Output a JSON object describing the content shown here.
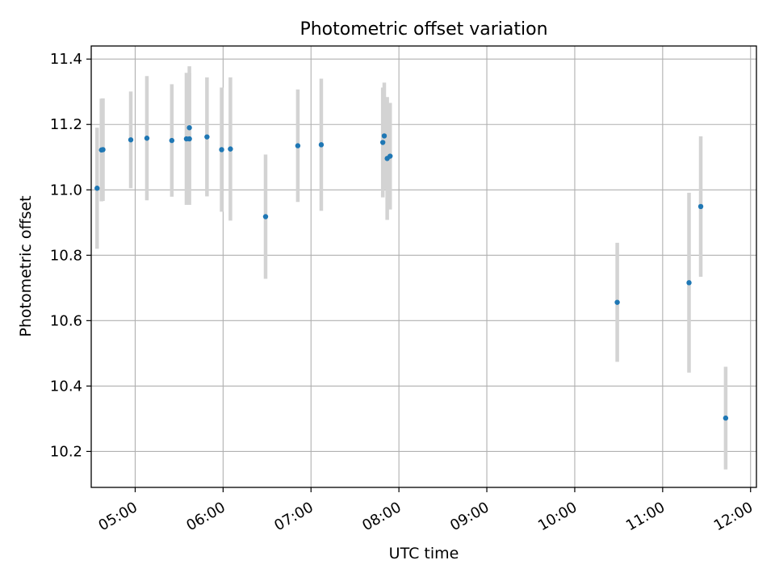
{
  "chart_data": {
    "type": "scatter",
    "title": "Photometric offset variation",
    "xlabel": "UTC time",
    "ylabel": "Photometric offset",
    "x_axis": {
      "scale": "time",
      "range": [
        "04:30",
        "12:04"
      ],
      "ticks": [
        "05:00",
        "06:00",
        "07:00",
        "08:00",
        "09:00",
        "10:00",
        "11:00",
        "12:00"
      ]
    },
    "y_axis": {
      "range": [
        10.09,
        11.44
      ],
      "ticks": [
        "10.2",
        "10.4",
        "10.6",
        "10.8",
        "11.0",
        "11.2",
        "11.4"
      ]
    },
    "grid": true,
    "legend": "none",
    "colors": {
      "marker": "#1f77b4",
      "errorbar": "#d3d3d3",
      "grid": "#b0b0b0"
    },
    "points": [
      {
        "x": "04:34",
        "y": 11.005,
        "err": 0.185
      },
      {
        "x": "04:37",
        "y": 11.122,
        "err": 0.157
      },
      {
        "x": "04:38",
        "y": 11.123,
        "err": 0.157
      },
      {
        "x": "04:57",
        "y": 11.153,
        "err": 0.148
      },
      {
        "x": "05:08",
        "y": 11.158,
        "err": 0.19
      },
      {
        "x": "05:25",
        "y": 11.151,
        "err": 0.172
      },
      {
        "x": "05:35",
        "y": 11.156,
        "err": 0.202
      },
      {
        "x": "05:37",
        "y": 11.156,
        "err": 0.202
      },
      {
        "x": "05:37",
        "y": 11.19,
        "err": 0.188
      },
      {
        "x": "05:49",
        "y": 11.162,
        "err": 0.182
      },
      {
        "x": "05:59",
        "y": 11.123,
        "err": 0.19
      },
      {
        "x": "06:05",
        "y": 11.125,
        "err": 0.219
      },
      {
        "x": "06:29",
        "y": 10.918,
        "err": 0.19
      },
      {
        "x": "06:51",
        "y": 11.135,
        "err": 0.172
      },
      {
        "x": "07:07",
        "y": 11.138,
        "err": 0.202
      },
      {
        "x": "07:49",
        "y": 11.145,
        "err": 0.168
      },
      {
        "x": "07:50",
        "y": 11.165,
        "err": 0.163
      },
      {
        "x": "07:52",
        "y": 11.096,
        "err": 0.188
      },
      {
        "x": "07:54",
        "y": 11.103,
        "err": 0.163
      },
      {
        "x": "10:29",
        "y": 10.656,
        "err": 0.182
      },
      {
        "x": "11:18",
        "y": 10.716,
        "err": 0.275
      },
      {
        "x": "11:26",
        "y": 10.949,
        "err": 0.215
      },
      {
        "x": "11:43",
        "y": 10.302,
        "err": 0.157
      }
    ]
  }
}
